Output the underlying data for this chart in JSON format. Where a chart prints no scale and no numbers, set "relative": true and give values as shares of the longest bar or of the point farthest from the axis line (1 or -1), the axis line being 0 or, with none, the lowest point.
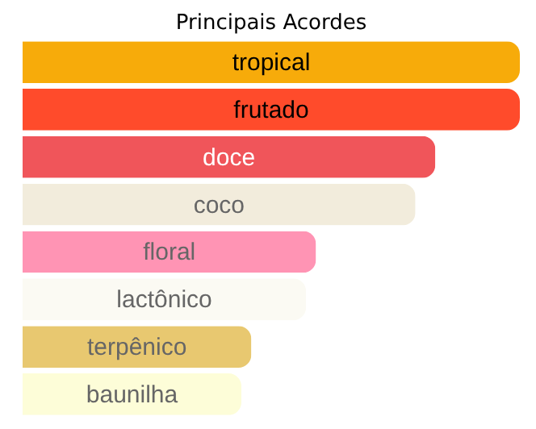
{
  "chart_data": {
    "type": "bar",
    "title": "Principais Acordes",
    "orientation": "horizontal",
    "relative": true,
    "categories": [
      "tropical",
      "frutado",
      "doce",
      "coco",
      "floral",
      "lactônico",
      "terpênico",
      "baunilha"
    ],
    "values": [
      1,
      1,
      0.83,
      0.79,
      0.59,
      0.57,
      0.46,
      0.44
    ],
    "colors": [
      "#f7ab0a",
      "#ff4b2b",
      "#f0555a",
      "#f2ecdc",
      "#ff94b4",
      "#fbfaf3",
      "#e8c870",
      "#fdfdd8"
    ]
  }
}
